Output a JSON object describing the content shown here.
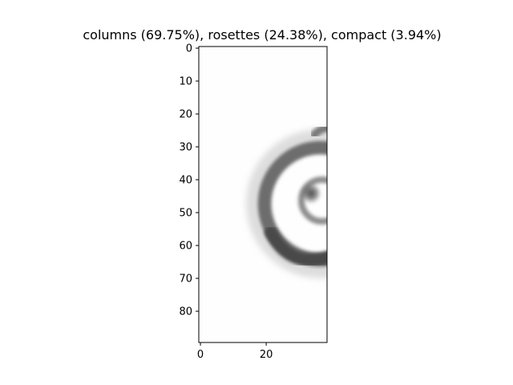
{
  "chart_data": {
    "type": "heatmap",
    "title": "columns (69.75%), rosettes (24.38%), compact (3.94%)",
    "xlabel": "",
    "ylabel": "",
    "xlim": [
      -0.5,
      38.5
    ],
    "ylim": [
      89.5,
      -0.5
    ],
    "x_ticks": [
      0,
      20
    ],
    "y_ticks": [
      0,
      10,
      20,
      30,
      40,
      50,
      60,
      70,
      80
    ],
    "colormap": "gray_r",
    "grid": false,
    "image_width": 39,
    "image_height": 90
  }
}
